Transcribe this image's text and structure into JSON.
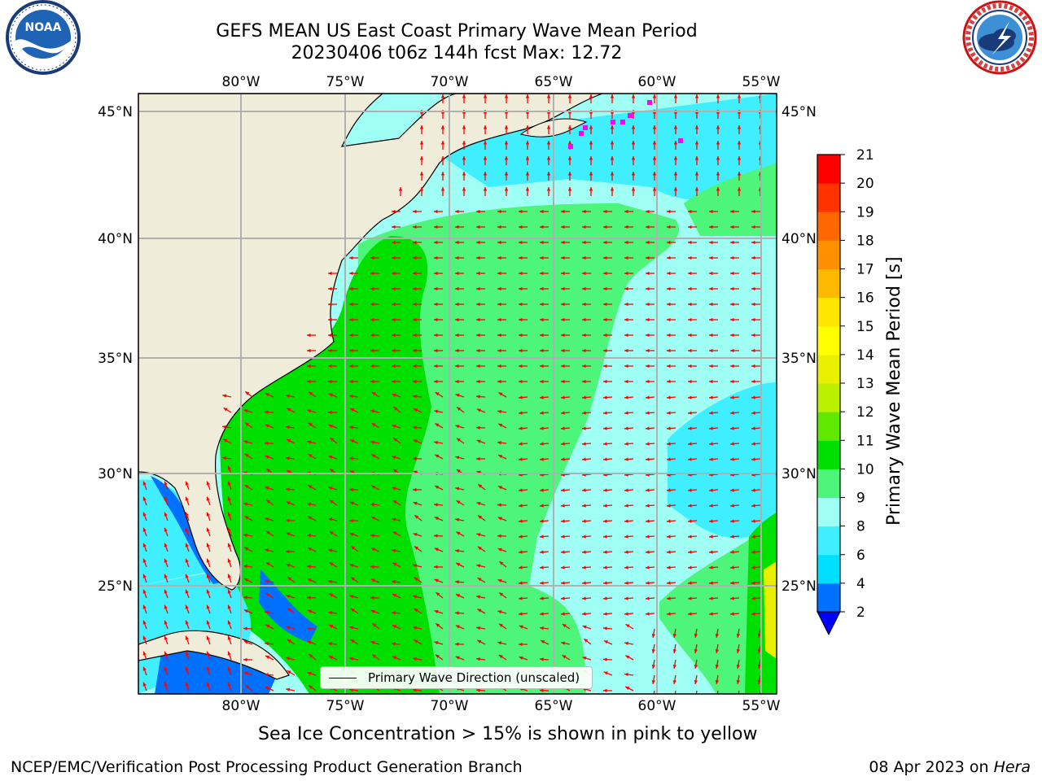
{
  "title": {
    "line1": "GEFS MEAN US East Coast Primary Wave Mean Period",
    "line2": "20230406 t06z 144h fcst   Max: 12.72"
  },
  "logos": {
    "left": {
      "name": "noaa-logo",
      "text": "NOAA",
      "ring_text": "NATIONAL OCEANIC AND ATMOSPHERIC ADMINISTRATION · U.S. DEPARTMENT OF COMMERCE"
    },
    "right": {
      "name": "nws-logo",
      "ring_text": "NATIONAL WEATHER SERVICE"
    }
  },
  "map": {
    "lon_labels": [
      "80°W",
      "75°W",
      "70°W",
      "65°W",
      "60°W",
      "55°W"
    ],
    "lat_labels": [
      "45°N",
      "40°N",
      "35°N",
      "30°N",
      "25°N"
    ],
    "land_color": "#efedd9",
    "arrow_color": "#ff0000",
    "ice_color": "#ff00ff",
    "grid": true
  },
  "legend": {
    "label": "Primary Wave Direction (unscaled)"
  },
  "colorbar": {
    "label": "Primary Wave Mean Period [s]",
    "ticks": [
      "2",
      "4",
      "6",
      "8",
      "9",
      "10",
      "11",
      "12",
      "13",
      "14",
      "15",
      "16",
      "17",
      "18",
      "19",
      "20",
      "21"
    ],
    "colors": [
      "#0070ff",
      "#00dfff",
      "#40efff",
      "#9ffff4",
      "#4df57a",
      "#00e000",
      "#60e800",
      "#bbf000",
      "#e8f000",
      "#ffff00",
      "#ffe500",
      "#ffba00",
      "#ff9000",
      "#ff6800",
      "#ff3300",
      "#ff0000"
    ],
    "under_color": "#0000ff"
  },
  "footer": {
    "subtitle": "Sea Ice Concentration > 15% is shown in pink to yellow",
    "credit": "NCEP/EMC/Verification Post Processing Product Generation Branch",
    "date": "08 Apr 2023 on",
    "host": "Hera"
  }
}
